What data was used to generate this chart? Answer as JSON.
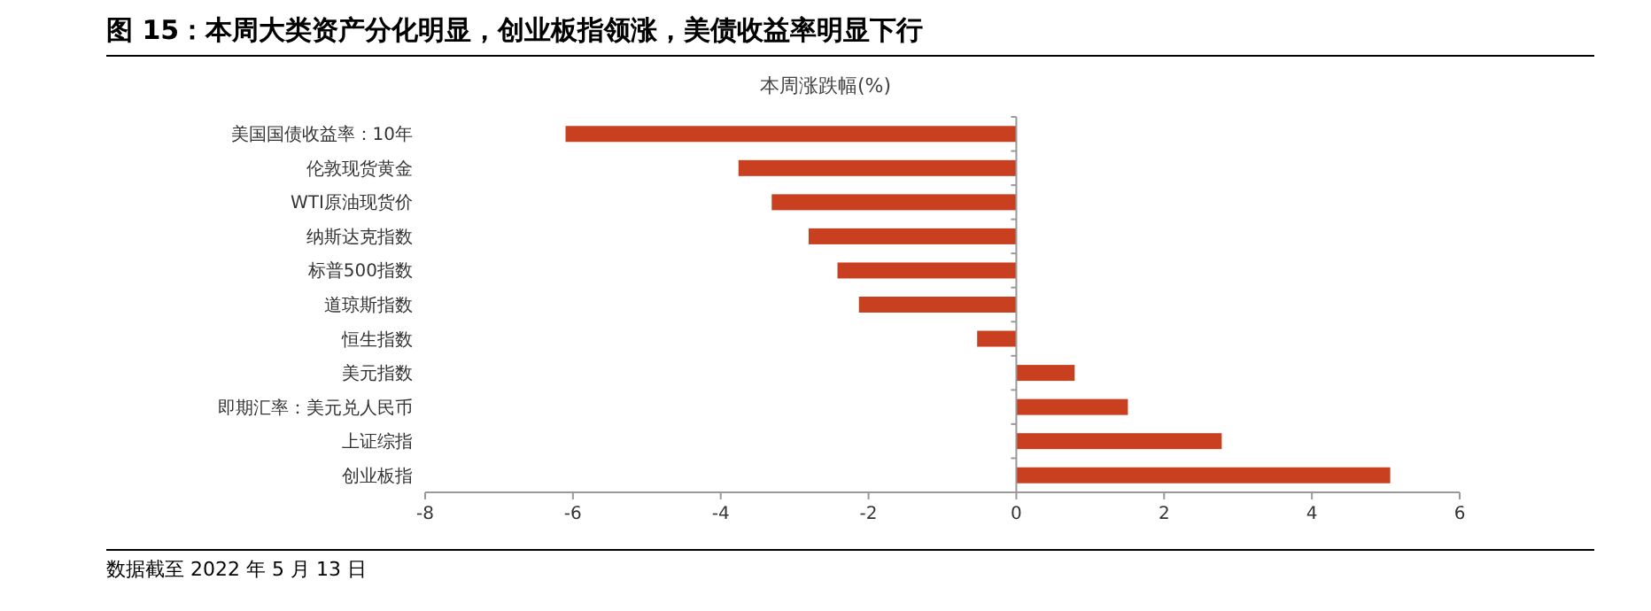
{
  "chart_data": {
    "type": "bar",
    "orientation": "horizontal",
    "title": "图 15：本周大类资产分化明显，创业板指领涨，美债收益率明显下行",
    "subtitle": "本周涨跌幅(%)",
    "categories": [
      "美国国债收益率：10年",
      "伦敦现货黄金",
      "WTI原油现货价",
      "纳斯达克指数",
      "标普500指数",
      "道琼斯指数",
      "恒生指数",
      "美元指数",
      "即期汇率：美元兑人民币",
      "上证综指",
      "创业板指"
    ],
    "values": [
      -6.1,
      -3.76,
      -3.31,
      -2.81,
      -2.42,
      -2.13,
      -0.53,
      0.79,
      1.51,
      2.78,
      5.06
    ],
    "color": "#c8401f",
    "xlim": [
      -8,
      6
    ],
    "xticks": [
      -8,
      -6,
      -4,
      -2,
      0,
      2,
      4,
      6
    ],
    "annotations": [
      "数据截至 2022 年 5 月 13 日"
    ]
  }
}
